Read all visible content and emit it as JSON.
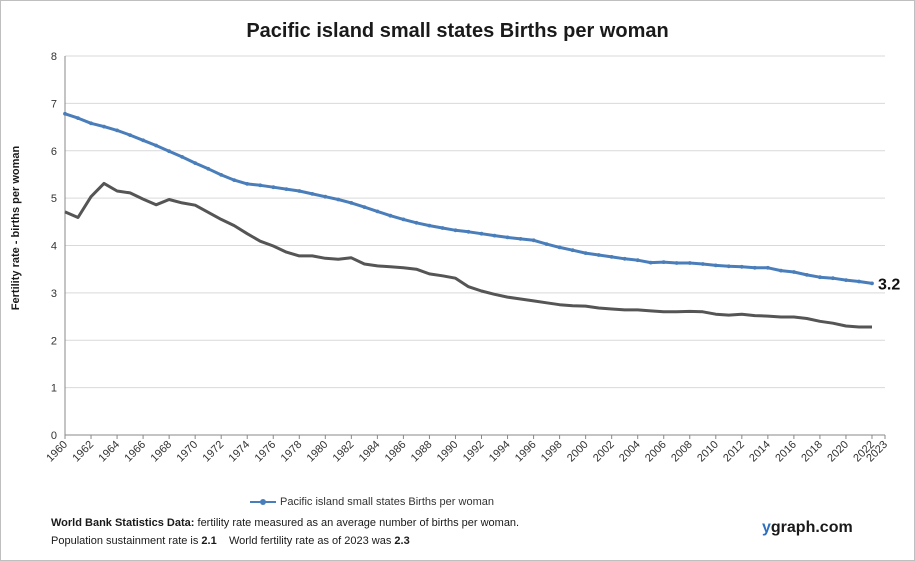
{
  "title": "Pacific island small states Births per woman",
  "colors": {
    "main_series": "#4a7ebb",
    "secondary_series": "#555555",
    "grid": "#d9d9d9",
    "axis": "#888888"
  },
  "chart_data": {
    "type": "line",
    "title": "Pacific island small states Births per woman",
    "ylabel": "Fertility rate  - births per woman",
    "xlabel": "",
    "ylim": [
      0,
      8
    ],
    "xlim": [
      1960,
      2023
    ],
    "y_ticks": [
      "0",
      "1",
      "2",
      "3",
      "4",
      "5",
      "6",
      "7",
      "8"
    ],
    "x_ticks": [
      "1960",
      "1962",
      "1964",
      "1966",
      "1968",
      "1970",
      "1972",
      "1974",
      "1976",
      "1978",
      "1980",
      "1982",
      "1984",
      "1986",
      "1988",
      "1990",
      "1992",
      "1994",
      "1996",
      "1998",
      "2000",
      "2002",
      "2004",
      "2006",
      "2008",
      "2010",
      "2012",
      "2014",
      "2016",
      "2018",
      "2020",
      "2022",
      "2023"
    ],
    "grid": "horizontal",
    "legend_position": "bottom",
    "end_label": "3.2",
    "series": [
      {
        "name": "Pacific island small states Births per woman",
        "color": "#4a7ebb",
        "markers": true,
        "x": [
          1960,
          1961,
          1962,
          1963,
          1964,
          1965,
          1966,
          1967,
          1968,
          1969,
          1970,
          1971,
          1972,
          1973,
          1974,
          1975,
          1976,
          1977,
          1978,
          1979,
          1980,
          1981,
          1982,
          1983,
          1984,
          1985,
          1986,
          1987,
          1988,
          1989,
          1990,
          1991,
          1992,
          1993,
          1994,
          1995,
          1996,
          1997,
          1998,
          1999,
          2000,
          2001,
          2002,
          2003,
          2004,
          2005,
          2006,
          2007,
          2008,
          2009,
          2010,
          2011,
          2012,
          2013,
          2014,
          2015,
          2016,
          2017,
          2018,
          2019,
          2020,
          2021,
          2022
        ],
        "values": [
          6.78,
          6.69,
          6.58,
          6.51,
          6.43,
          6.33,
          6.22,
          6.11,
          5.99,
          5.87,
          5.74,
          5.62,
          5.49,
          5.38,
          5.3,
          5.27,
          5.23,
          5.19,
          5.15,
          5.09,
          5.03,
          4.97,
          4.9,
          4.81,
          4.72,
          4.63,
          4.55,
          4.48,
          4.42,
          4.37,
          4.32,
          4.29,
          4.25,
          4.21,
          4.17,
          4.14,
          4.11,
          4.03,
          3.96,
          3.9,
          3.84,
          3.8,
          3.76,
          3.72,
          3.69,
          3.64,
          3.65,
          3.63,
          3.63,
          3.61,
          3.58,
          3.56,
          3.55,
          3.53,
          3.53,
          3.47,
          3.44,
          3.38,
          3.33,
          3.31,
          3.27,
          3.24,
          3.2
        ]
      },
      {
        "color": "#555555",
        "markers": false,
        "x": [
          1960,
          1961,
          1962,
          1963,
          1964,
          1965,
          1966,
          1967,
          1968,
          1969,
          1970,
          1971,
          1972,
          1973,
          1974,
          1975,
          1976,
          1977,
          1978,
          1979,
          1980,
          1981,
          1982,
          1983,
          1984,
          1985,
          1986,
          1987,
          1988,
          1989,
          1990,
          1991,
          1992,
          1993,
          1994,
          1995,
          1996,
          1997,
          1998,
          1999,
          2000,
          2001,
          2002,
          2003,
          2004,
          2005,
          2006,
          2007,
          2008,
          2009,
          2010,
          2011,
          2012,
          2013,
          2014,
          2015,
          2016,
          2017,
          2018,
          2019,
          2020,
          2021,
          2022
        ],
        "values": [
          4.71,
          4.59,
          5.03,
          5.31,
          5.15,
          5.11,
          4.98,
          4.86,
          4.97,
          4.9,
          4.85,
          4.7,
          4.55,
          4.42,
          4.25,
          4.09,
          3.99,
          3.86,
          3.78,
          3.78,
          3.73,
          3.71,
          3.74,
          3.61,
          3.57,
          3.55,
          3.53,
          3.5,
          3.4,
          3.36,
          3.31,
          3.13,
          3.04,
          2.97,
          2.91,
          2.87,
          2.83,
          2.79,
          2.75,
          2.73,
          2.72,
          2.68,
          2.66,
          2.64,
          2.64,
          2.62,
          2.6,
          2.6,
          2.61,
          2.6,
          2.55,
          2.53,
          2.55,
          2.52,
          2.51,
          2.49,
          2.49,
          2.46,
          2.4,
          2.36,
          2.3,
          2.28,
          2.28
        ]
      }
    ]
  },
  "legend": {
    "label": "Pacific island small states Births per woman"
  },
  "notes": {
    "line1_bold": "World Bank Statistics Data:",
    "line1_text": " fertility rate measured as an average number  of births per woman.",
    "line2_prefix": "Population sustainment rate is ",
    "line2_value": "2.1",
    "line2_mid": "    World fertility rate as of 2023 was ",
    "line2_value2": "2.3"
  },
  "brand": {
    "prefix": "y",
    "rest": "graph.com"
  }
}
